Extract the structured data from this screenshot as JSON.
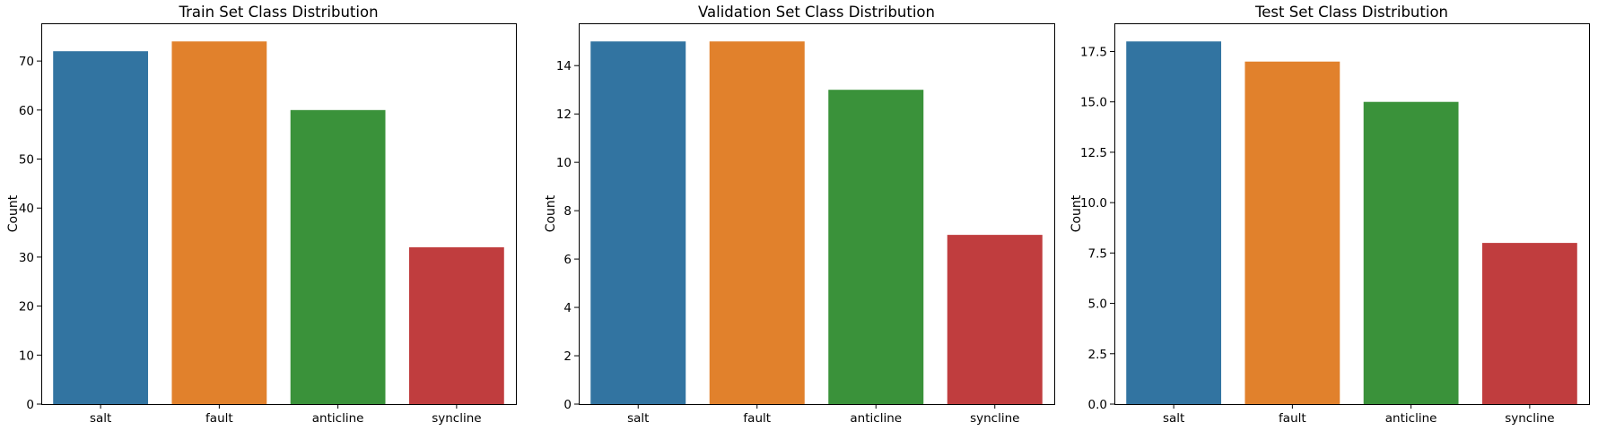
{
  "chart_data": [
    {
      "type": "bar",
      "title": "Train Set Class Distribution",
      "xlabel": "",
      "ylabel": "Count",
      "categories": [
        "salt",
        "fault",
        "anticline",
        "syncline"
      ],
      "values": [
        72,
        74,
        60,
        32
      ],
      "ylim": [
        0,
        77.7
      ],
      "yticks": [
        0,
        10,
        20,
        30,
        40,
        50,
        60,
        70
      ],
      "ytick_labels": [
        "0",
        "10",
        "20",
        "30",
        "40",
        "50",
        "60",
        "70"
      ],
      "grid": false,
      "legend": "none"
    },
    {
      "type": "bar",
      "title": "Validation Set Class Distribution",
      "xlabel": "",
      "ylabel": "Count",
      "categories": [
        "salt",
        "fault",
        "anticline",
        "syncline"
      ],
      "values": [
        15,
        15,
        13,
        7
      ],
      "ylim": [
        0,
        15.75
      ],
      "yticks": [
        0,
        2,
        4,
        6,
        8,
        10,
        12,
        14
      ],
      "ytick_labels": [
        "0",
        "2",
        "4",
        "6",
        "8",
        "10",
        "12",
        "14"
      ],
      "grid": false,
      "legend": "none"
    },
    {
      "type": "bar",
      "title": "Test Set Class Distribution",
      "xlabel": "",
      "ylabel": "Count",
      "categories": [
        "salt",
        "fault",
        "anticline",
        "syncline"
      ],
      "values": [
        18,
        17,
        15,
        8
      ],
      "ylim": [
        0,
        18.9
      ],
      "yticks": [
        0,
        2.5,
        5,
        7.5,
        10,
        12.5,
        15,
        17.5
      ],
      "ytick_labels": [
        "0.0",
        "2.5",
        "5.0",
        "7.5",
        "10.0",
        "12.5",
        "15.0",
        "17.5"
      ],
      "grid": false,
      "legend": "none"
    }
  ],
  "colors": [
    "#3274a1",
    "#e1812c",
    "#3a923a",
    "#c03d3e"
  ]
}
